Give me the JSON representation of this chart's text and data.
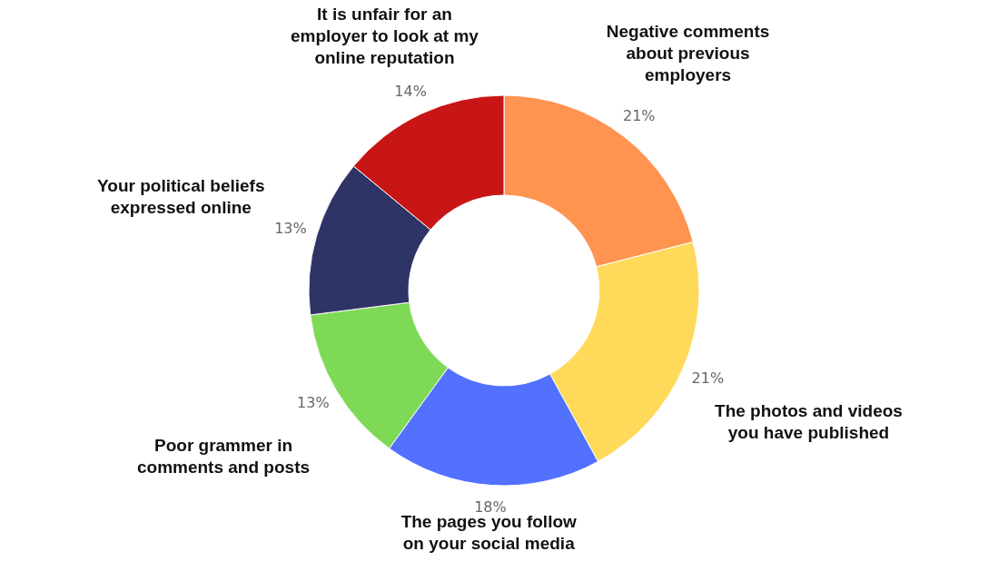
{
  "chart_data": {
    "type": "donut",
    "categories": [
      "Negative comments about previous employers",
      "The photos and videos you have published",
      "The pages you follow on your social media",
      "Poor grammer in comments and posts",
      "Your political beliefs expressed online",
      "It is unfair for an employer to look at my online reputation"
    ],
    "values": [
      21,
      21,
      18,
      13,
      13,
      14
    ],
    "value_labels": [
      "21%",
      "21%",
      "18%",
      "13%",
      "13%",
      "14%"
    ],
    "colors": [
      "#ff9350",
      "#ffd95a",
      "#5271ff",
      "#7ed957",
      "#2e3466",
      "#c81515"
    ]
  }
}
